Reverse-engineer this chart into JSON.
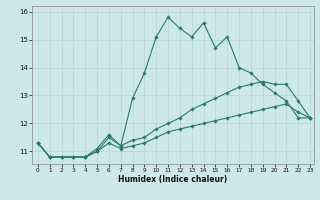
{
  "xlabel": "Humidex (Indice chaleur)",
  "bg_color": "#cde8e8",
  "grid_color": "#b8d4d4",
  "line_color": "#2a7a6a",
  "x_min": -0.5,
  "x_max": 23.3,
  "y_min": 10.55,
  "y_max": 16.2,
  "yticks": [
    11,
    12,
    13,
    14,
    15,
    16
  ],
  "xticks": [
    0,
    1,
    2,
    3,
    4,
    5,
    6,
    7,
    8,
    9,
    10,
    11,
    12,
    13,
    14,
    15,
    16,
    17,
    18,
    19,
    20,
    21,
    22,
    23
  ],
  "series1_x": [
    0,
    1,
    2,
    3,
    4,
    5,
    6,
    7,
    8,
    9,
    10,
    11,
    12,
    13,
    14,
    15,
    16,
    17,
    18,
    19,
    20,
    21,
    22,
    23
  ],
  "series1_y": [
    11.3,
    10.8,
    10.8,
    10.8,
    10.8,
    11.1,
    11.6,
    11.2,
    12.9,
    13.8,
    15.1,
    15.8,
    15.4,
    15.1,
    15.6,
    14.7,
    15.1,
    14.0,
    13.8,
    13.4,
    13.1,
    12.8,
    12.2,
    12.2
  ],
  "series2_x": [
    0,
    1,
    2,
    3,
    4,
    5,
    6,
    7,
    8,
    9,
    10,
    11,
    12,
    13,
    14,
    15,
    16,
    17,
    18,
    19,
    20,
    21,
    22,
    23
  ],
  "series2_y": [
    11.3,
    10.8,
    10.8,
    10.8,
    10.8,
    11.0,
    11.5,
    11.2,
    11.4,
    11.5,
    11.8,
    12.0,
    12.2,
    12.5,
    12.7,
    12.9,
    13.1,
    13.3,
    13.4,
    13.5,
    13.4,
    13.4,
    12.8,
    12.2
  ],
  "series3_x": [
    0,
    1,
    2,
    3,
    4,
    5,
    6,
    7,
    8,
    9,
    10,
    11,
    12,
    13,
    14,
    15,
    16,
    17,
    18,
    19,
    20,
    21,
    22,
    23
  ],
  "series3_y": [
    11.3,
    10.8,
    10.8,
    10.8,
    10.8,
    11.0,
    11.3,
    11.1,
    11.2,
    11.3,
    11.5,
    11.7,
    11.8,
    11.9,
    12.0,
    12.1,
    12.2,
    12.3,
    12.4,
    12.5,
    12.6,
    12.7,
    12.4,
    12.2
  ]
}
